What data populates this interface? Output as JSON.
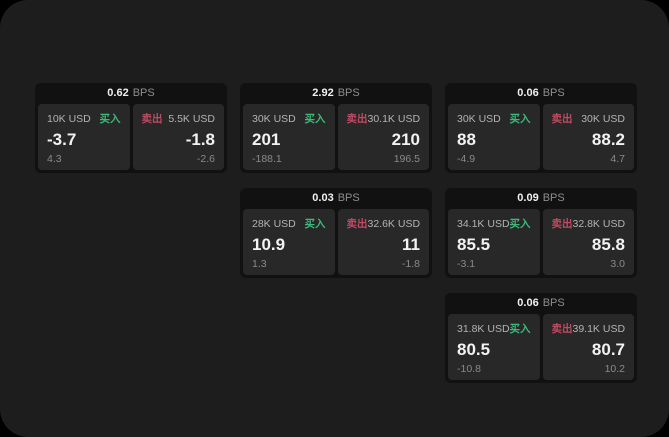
{
  "app": {
    "theme": "dark",
    "colors": {
      "background": "#1d1d1d",
      "card_background": "#111111",
      "panel_background": "#282828",
      "buy_green": "#3cba78",
      "sell_red": "#c04a63",
      "primary_text": "#f2f2f2",
      "secondary_text": "#8e8e8e"
    }
  },
  "cards": [
    {
      "header": {
        "value": "0.62",
        "unit": "BPS"
      },
      "buy": {
        "amount": "10K USD",
        "side": "买入",
        "price": "-3.7",
        "delta": "4.3"
      },
      "sell": {
        "side": "卖出",
        "amount": "5.5K USD",
        "price": "-1.8",
        "delta": "-2.6"
      }
    },
    {
      "header": {
        "value": "2.92",
        "unit": "BPS"
      },
      "buy": {
        "amount": "30K USD",
        "side": "买入",
        "price": "201",
        "delta": "-188.1"
      },
      "sell": {
        "side": "卖出",
        "amount": "30.1K USD",
        "price": "210",
        "delta": "196.5"
      }
    },
    {
      "header": {
        "value": "0.06",
        "unit": "BPS"
      },
      "buy": {
        "amount": "30K USD",
        "side": "买入",
        "price": "88",
        "delta": "-4.9"
      },
      "sell": {
        "side": "卖出",
        "amount": "30K USD",
        "price": "88.2",
        "delta": "4.7"
      }
    },
    {
      "header": {
        "value": "0.03",
        "unit": "BPS"
      },
      "buy": {
        "amount": "28K USD",
        "side": "买入",
        "price": "10.9",
        "delta": "1.3"
      },
      "sell": {
        "side": "卖出",
        "amount": "32.6K USD",
        "price": "11",
        "delta": "-1.8"
      }
    },
    {
      "header": {
        "value": "0.09",
        "unit": "BPS"
      },
      "buy": {
        "amount": "34.1K USD",
        "side": "买入",
        "price": "85.5",
        "delta": "-3.1"
      },
      "sell": {
        "side": "卖出",
        "amount": "32.8K USD",
        "price": "85.8",
        "delta": "3.0"
      }
    },
    {
      "header": {
        "value": "0.06",
        "unit": "BPS"
      },
      "buy": {
        "amount": "31.8K USD",
        "side": "买入",
        "price": "80.5",
        "delta": "-10.8"
      },
      "sell": {
        "side": "卖出",
        "amount": "39.1K USD",
        "price": "80.7",
        "delta": "10.2"
      }
    }
  ]
}
